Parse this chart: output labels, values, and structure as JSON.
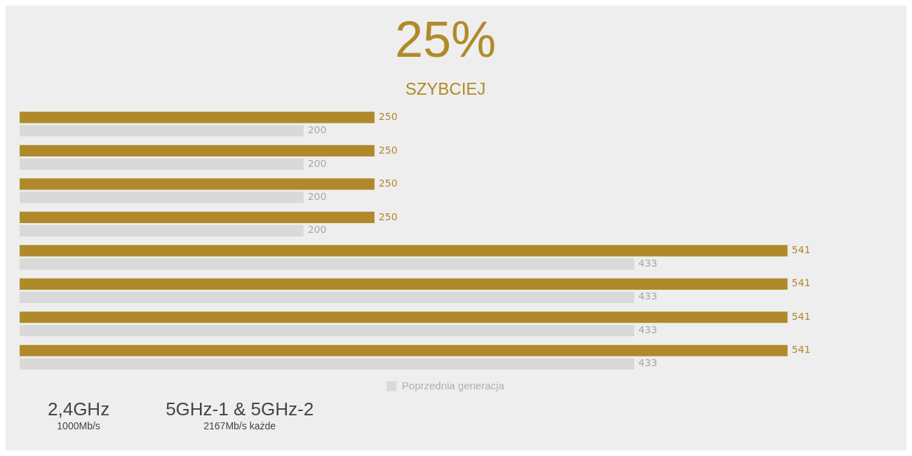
{
  "chart_data": {
    "type": "bar",
    "orientation": "horizontal",
    "title": "25%",
    "subtitle": "SZYBCIEJ",
    "categories": [
      null,
      null,
      null,
      null,
      null,
      null,
      null,
      null
    ],
    "series": [
      {
        "color": "#b08a2a",
        "values": [
          250,
          250,
          250,
          250,
          541,
          541,
          541,
          541
        ]
      },
      {
        "name": "Poprzednia generacja",
        "color": "#d9d9d9",
        "values": [
          200,
          200,
          200,
          200,
          433,
          433,
          433,
          433
        ]
      }
    ],
    "data_labels": true,
    "legend": "bottom",
    "annotations": [
      "2,4GHz",
      "1000Mb/s",
      "5GHz-1 & 5GHz-2",
      "2167Mb/s każde"
    ]
  }
}
